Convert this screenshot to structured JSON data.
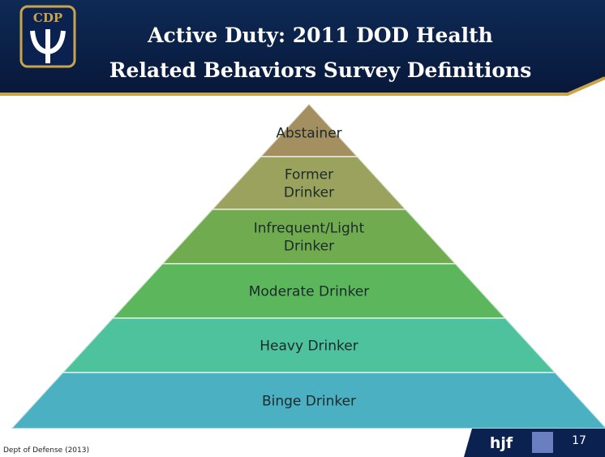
{
  "header": {
    "logo": "CDP",
    "title": [
      "Active Duty: 2011 DOD Health",
      "Related Behaviors Survey Definitions"
    ]
  },
  "pyramid": {
    "levels": [
      {
        "label": [
          "Abstainer"
        ],
        "color": "#a38f60"
      },
      {
        "label": [
          "Former",
          "Drinker"
        ],
        "color": "#9aa25e"
      },
      {
        "label": [
          "Infrequent/Light",
          "Drinker"
        ],
        "color": "#70ac4f"
      },
      {
        "label": [
          "Moderate Drinker"
        ],
        "color": "#5bb65c"
      },
      {
        "label": [
          "Heavy Drinker"
        ],
        "color": "#4ec29c"
      },
      {
        "label": [
          "Binge Drinker"
        ],
        "color": "#4bb0c2"
      }
    ]
  },
  "footer": {
    "source": "Dept of Defense (2013)",
    "brand": "hjf",
    "page": "17"
  }
}
